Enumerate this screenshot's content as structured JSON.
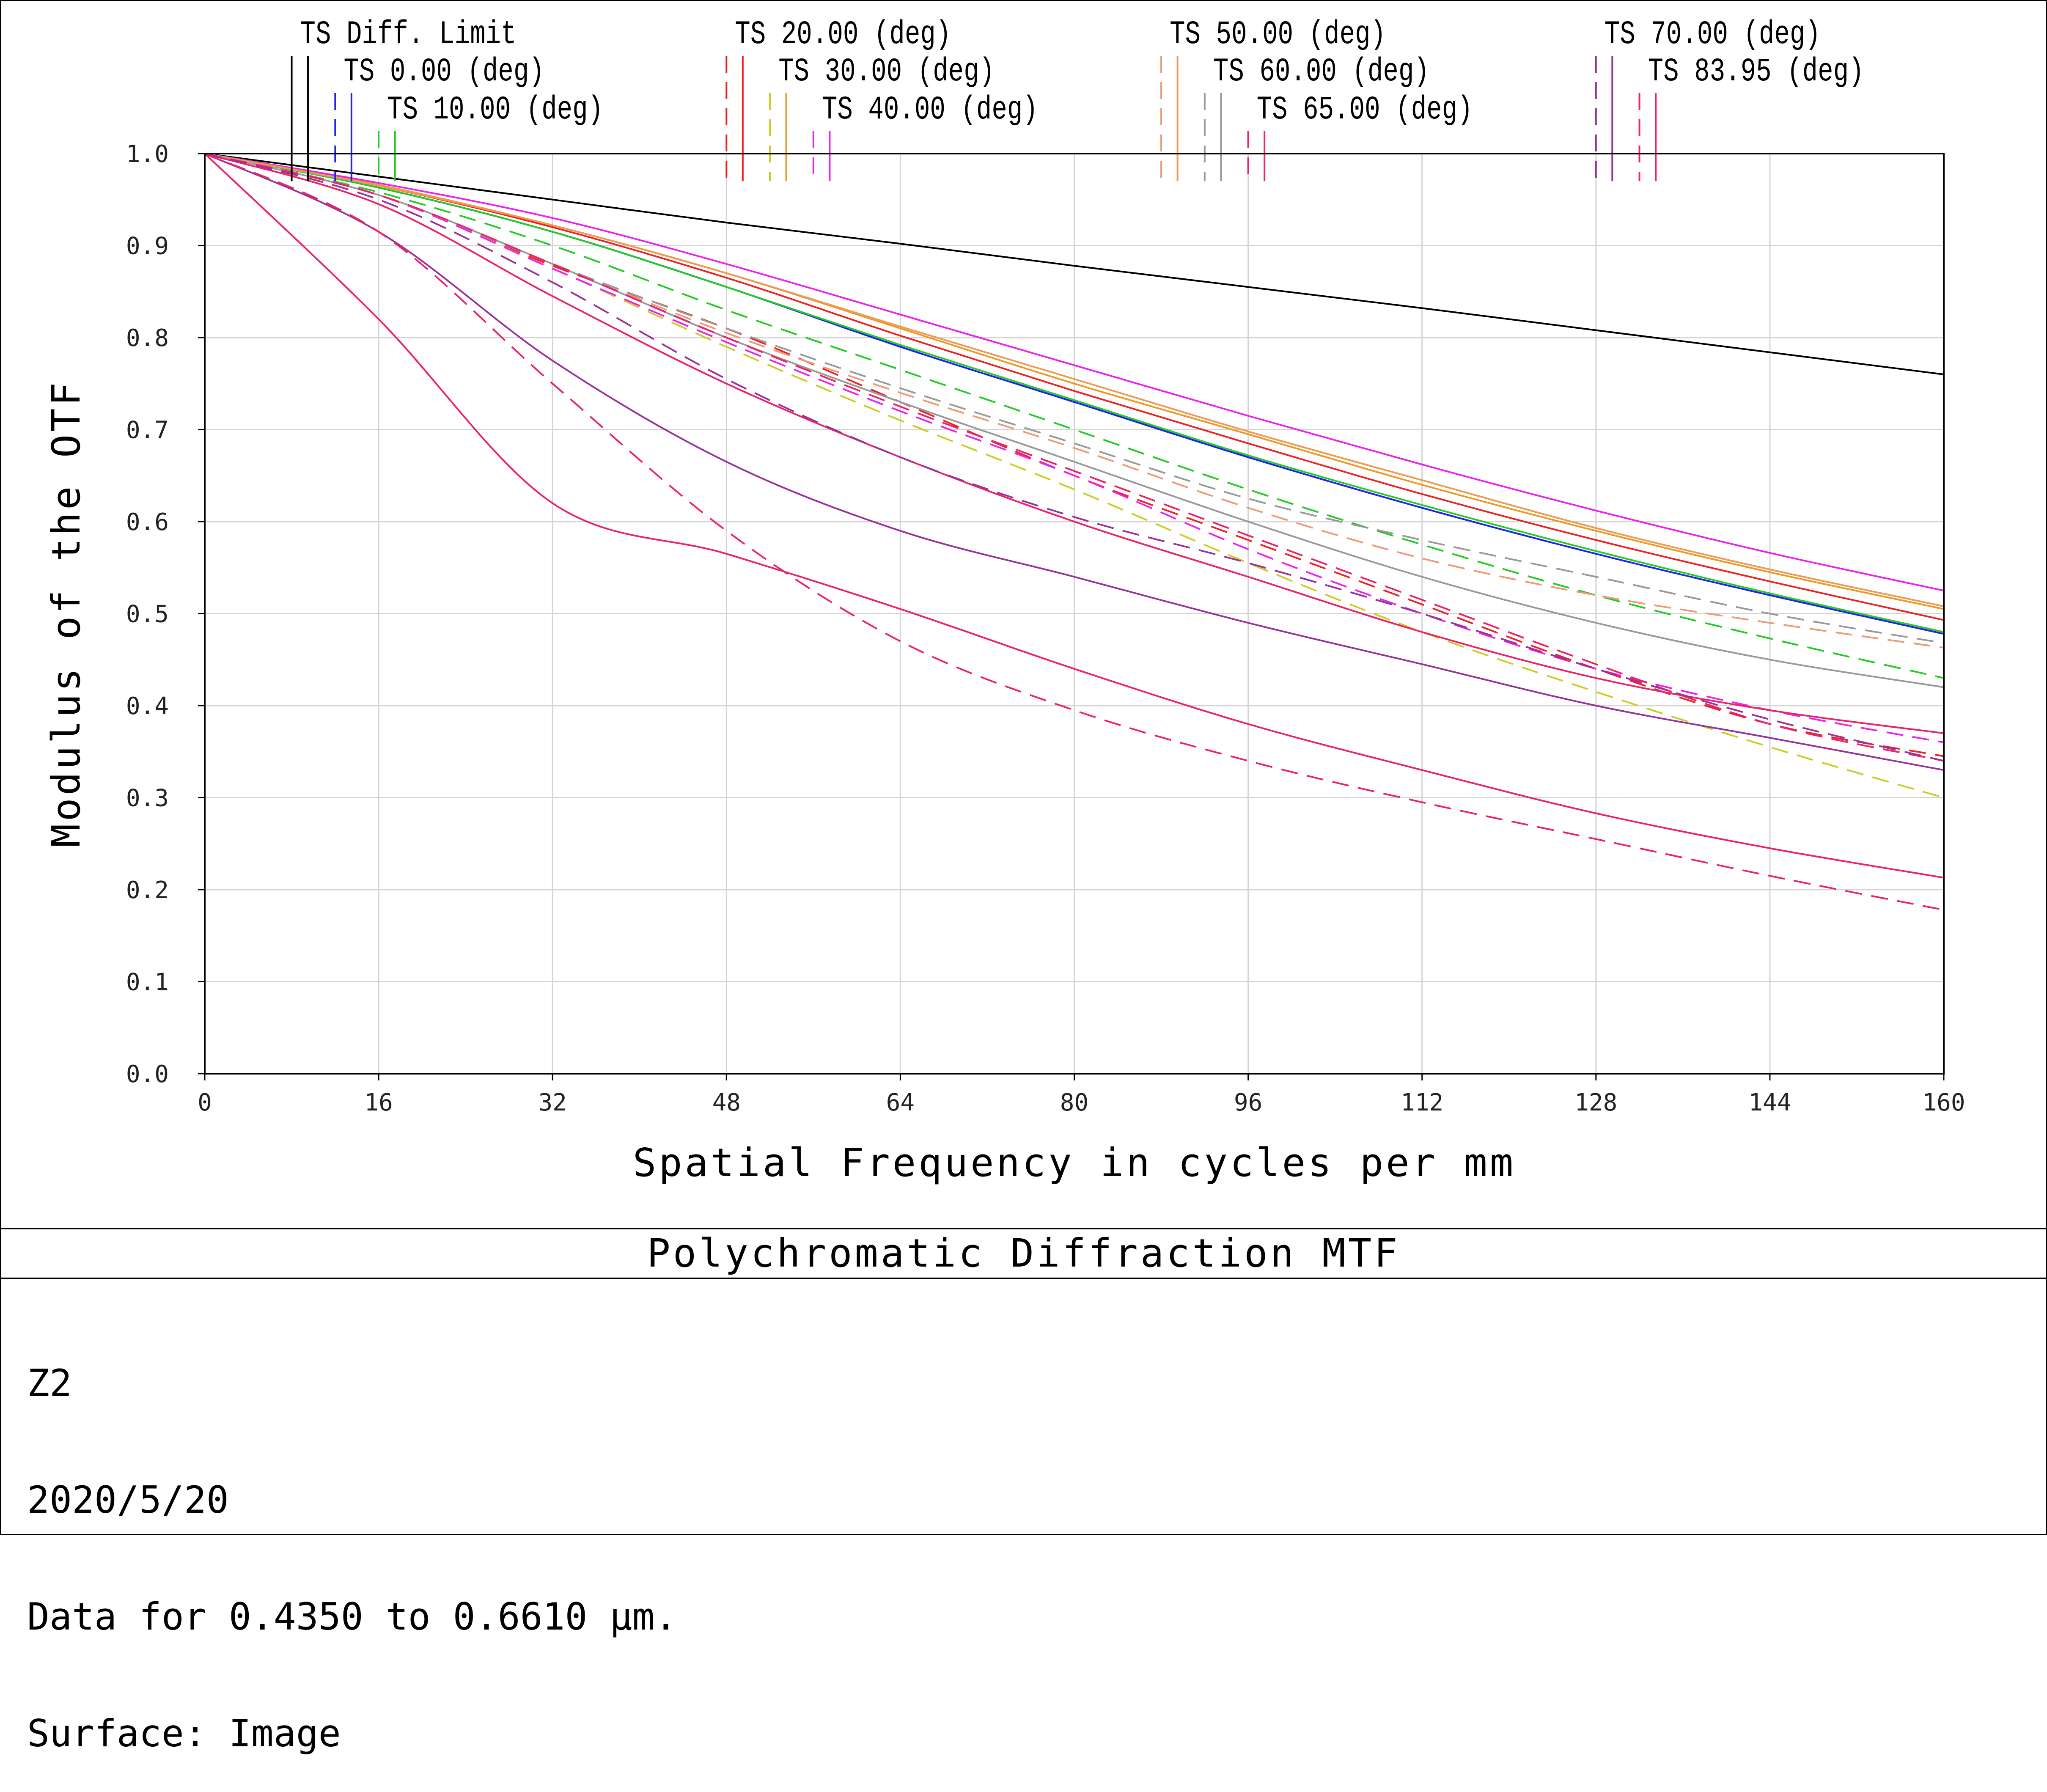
{
  "chart_data": {
    "type": "line",
    "title": "Polychromatic Diffraction MTF",
    "xlabel": "Spatial Frequency in cycles per mm",
    "ylabel": "Modulus of the OTF",
    "xlim": [
      0,
      160
    ],
    "ylim": [
      0,
      1.0
    ],
    "x_ticks": [
      "0",
      "16",
      "32",
      "48",
      "64",
      "80",
      "96",
      "112",
      "128",
      "144",
      "160"
    ],
    "y_ticks": [
      "0.0",
      "0.1",
      "0.2",
      "0.3",
      "0.4",
      "0.5",
      "0.6",
      "0.7",
      "0.8",
      "0.9",
      "1.0"
    ],
    "grid": true,
    "x": [
      0,
      16,
      32,
      48,
      64,
      80,
      96,
      112,
      128,
      144,
      160
    ],
    "series": [
      {
        "name": "Diff. Limit",
        "color": "#000000",
        "style": "solid",
        "values": [
          1.0,
          0.975,
          0.95,
          0.925,
          0.902,
          0.878,
          0.855,
          0.832,
          0.808,
          0.784,
          0.76
        ]
      },
      {
        "name": "0.00 (deg)",
        "color": "#2222ee",
        "style": "dashed",
        "values": [
          1.0,
          0.963,
          0.915,
          0.855,
          0.79,
          0.73,
          0.67,
          0.615,
          0.565,
          0.52,
          0.478
        ]
      },
      {
        "name": "0.00 (deg)",
        "color": "#2222ee",
        "style": "solid",
        "values": [
          1.0,
          0.963,
          0.915,
          0.855,
          0.79,
          0.73,
          0.67,
          0.615,
          0.565,
          0.52,
          0.478
        ]
      },
      {
        "name": "10.00 (deg)",
        "color": "#22cc22",
        "style": "dashed",
        "values": [
          1.0,
          0.958,
          0.9,
          0.83,
          0.765,
          0.7,
          0.635,
          0.575,
          0.52,
          0.473,
          0.43
        ]
      },
      {
        "name": "10.00 (deg)",
        "color": "#22cc22",
        "style": "solid",
        "values": [
          1.0,
          0.963,
          0.915,
          0.855,
          0.792,
          0.732,
          0.672,
          0.618,
          0.568,
          0.522,
          0.48
        ]
      },
      {
        "name": "20.00 (deg)",
        "color": "#ee2222",
        "style": "dashed",
        "values": [
          1.0,
          0.955,
          0.878,
          0.81,
          0.73,
          0.65,
          0.58,
          0.51,
          0.44,
          0.38,
          0.345
        ]
      },
      {
        "name": "20.00 (deg)",
        "color": "#ee2222",
        "style": "solid",
        "values": [
          1.0,
          0.965,
          0.92,
          0.865,
          0.802,
          0.742,
          0.685,
          0.63,
          0.58,
          0.535,
          0.493
        ]
      },
      {
        "name": "30.00 (deg)",
        "color": "#cccc22",
        "style": "dashed",
        "values": [
          1.0,
          0.955,
          0.875,
          0.79,
          0.71,
          0.635,
          0.555,
          0.48,
          0.415,
          0.355,
          0.3
        ]
      },
      {
        "name": "30.00 (deg)",
        "color": "#ee9922",
        "style": "solid",
        "values": [
          1.0,
          0.966,
          0.922,
          0.87,
          0.81,
          0.75,
          0.695,
          0.64,
          0.59,
          0.545,
          0.505
        ]
      },
      {
        "name": "40.00 (deg)",
        "color": "#ee22ee",
        "style": "dashed",
        "values": [
          1.0,
          0.955,
          0.875,
          0.795,
          0.72,
          0.65,
          0.57,
          0.5,
          0.44,
          0.395,
          0.36
        ]
      },
      {
        "name": "40.00 (deg)",
        "color": "#ee22ee",
        "style": "solid",
        "values": [
          1.0,
          0.968,
          0.93,
          0.88,
          0.825,
          0.77,
          0.715,
          0.662,
          0.612,
          0.566,
          0.525
        ]
      },
      {
        "name": "50.00 (deg)",
        "color": "#ee9977",
        "style": "dashed",
        "values": [
          1.0,
          0.955,
          0.88,
          0.805,
          0.74,
          0.68,
          0.615,
          0.56,
          0.52,
          0.49,
          0.463
        ]
      },
      {
        "name": "50.00 (deg)",
        "color": "#ee9955",
        "style": "solid",
        "values": [
          1.0,
          0.965,
          0.922,
          0.87,
          0.812,
          0.755,
          0.698,
          0.645,
          0.593,
          0.548,
          0.508
        ]
      },
      {
        "name": "60.00 (deg)",
        "color": "#999999",
        "style": "dashed",
        "values": [
          1.0,
          0.955,
          0.88,
          0.81,
          0.745,
          0.685,
          0.625,
          0.58,
          0.54,
          0.5,
          0.468
        ]
      },
      {
        "name": "60.00 (deg)",
        "color": "#999999",
        "style": "solid",
        "values": [
          1.0,
          0.955,
          0.88,
          0.8,
          0.73,
          0.665,
          0.6,
          0.54,
          0.49,
          0.45,
          0.42
        ]
      },
      {
        "name": "65.00 (deg)",
        "color": "#ee2266",
        "style": "dashed",
        "values": [
          1.0,
          0.955,
          0.88,
          0.8,
          0.725,
          0.655,
          0.585,
          0.515,
          0.445,
          0.38,
          0.34
        ]
      },
      {
        "name": "65.00 (deg)",
        "color": "#ee2266",
        "style": "solid",
        "values": [
          1.0,
          0.945,
          0.845,
          0.75,
          0.67,
          0.6,
          0.54,
          0.48,
          0.43,
          0.395,
          0.37
        ]
      },
      {
        "name": "70.00 (deg)",
        "color": "#993399",
        "style": "dashed",
        "values": [
          1.0,
          0.95,
          0.86,
          0.755,
          0.67,
          0.605,
          0.555,
          0.5,
          0.44,
          0.385,
          0.34
        ]
      },
      {
        "name": "70.00 (deg)",
        "color": "#993399",
        "style": "solid",
        "values": [
          1.0,
          0.915,
          0.775,
          0.665,
          0.59,
          0.54,
          0.49,
          0.445,
          0.4,
          0.365,
          0.33
        ]
      },
      {
        "name": "83.95 (deg)",
        "color": "#ee2266",
        "style": "dashed",
        "values": [
          1.0,
          0.915,
          0.75,
          0.59,
          0.47,
          0.395,
          0.34,
          0.295,
          0.255,
          0.215,
          0.178
        ]
      },
      {
        "name": "83.95 (deg)",
        "color": "#ee2266",
        "style": "solid",
        "values": [
          1.0,
          0.82,
          0.62,
          0.565,
          0.505,
          0.44,
          0.38,
          0.33,
          0.283,
          0.245,
          0.213
        ]
      }
    ],
    "legend": [
      {
        "label": "TS Diff. Limit",
        "row": 0,
        "marks": [
          {
            "color": "#000000",
            "style": "solid",
            "x": 8
          },
          {
            "color": "#000000",
            "style": "solid",
            "x": 9.5
          }
        ]
      },
      {
        "label": "TS 0.00 (deg)",
        "row": 1,
        "marks": [
          {
            "color": "#2222ee",
            "style": "dashed",
            "x": 12
          },
          {
            "color": "#2222ee",
            "style": "solid",
            "x": 13.5
          }
        ]
      },
      {
        "label": "TS 10.00 (deg)",
        "row": 2,
        "marks": [
          {
            "color": "#22cc22",
            "style": "dashed",
            "x": 16
          },
          {
            "color": "#22cc22",
            "style": "solid",
            "x": 17.5
          }
        ]
      },
      {
        "label": "TS 20.00 (deg)",
        "row": 0,
        "marks": [
          {
            "color": "#ee2222",
            "style": "dashed",
            "x": 48
          },
          {
            "color": "#ee2222",
            "style": "solid",
            "x": 49.5
          }
        ]
      },
      {
        "label": "TS 30.00 (deg)",
        "row": 1,
        "marks": [
          {
            "color": "#cccc22",
            "style": "dashed",
            "x": 52
          },
          {
            "color": "#ee9922",
            "style": "solid",
            "x": 53.5
          }
        ]
      },
      {
        "label": "TS 40.00 (deg)",
        "row": 2,
        "marks": [
          {
            "color": "#ee22ee",
            "style": "dashed",
            "x": 56
          },
          {
            "color": "#ee22ee",
            "style": "solid",
            "x": 57.5
          }
        ]
      },
      {
        "label": "TS 50.00 (deg)",
        "row": 0,
        "marks": [
          {
            "color": "#ee9977",
            "style": "dashed",
            "x": 88
          },
          {
            "color": "#ee9955",
            "style": "solid",
            "x": 89.5
          }
        ]
      },
      {
        "label": "TS 60.00 (deg)",
        "row": 1,
        "marks": [
          {
            "color": "#999999",
            "style": "dashed",
            "x": 92
          },
          {
            "color": "#999999",
            "style": "solid",
            "x": 93.5
          }
        ]
      },
      {
        "label": "TS 65.00 (deg)",
        "row": 2,
        "marks": [
          {
            "color": "#ee2266",
            "style": "dashed",
            "x": 96
          },
          {
            "color": "#ee2266",
            "style": "solid",
            "x": 97.5
          }
        ]
      },
      {
        "label": "TS 70.00 (deg)",
        "row": 0,
        "marks": [
          {
            "color": "#993399",
            "style": "dashed",
            "x": 128
          },
          {
            "color": "#993399",
            "style": "solid",
            "x": 129.5
          }
        ]
      },
      {
        "label": "TS 83.95 (deg)",
        "row": 1,
        "marks": [
          {
            "color": "#ee2266",
            "style": "dashed",
            "x": 132
          },
          {
            "color": "#ee2266",
            "style": "solid",
            "x": 133.5
          }
        ]
      }
    ]
  },
  "info": {
    "line1": "Z2",
    "line2": "2020/5/20",
    "line3": "Data for 0.4350 to 0.6610 µm.",
    "line4": "Surface: Image"
  }
}
